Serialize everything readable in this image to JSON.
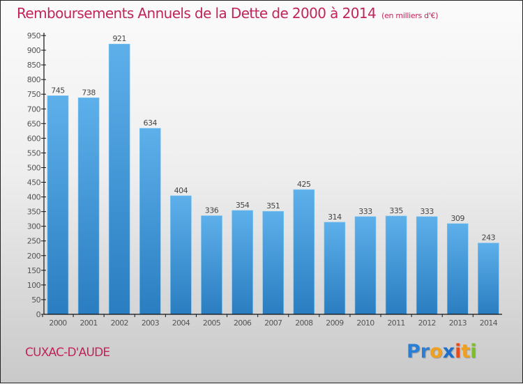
{
  "header": {
    "title": "Remboursements Annuels de la Dette de 2000 à 2014",
    "subtitle": "(en milliers d'€)"
  },
  "footer": {
    "commune": "CUXAC-D'AUDE",
    "logo": {
      "letters": [
        {
          "char": "P",
          "color": "#2a7fd4"
        },
        {
          "char": "r",
          "color": "#2a7fd4"
        },
        {
          "char": "o",
          "color": "#f0a020"
        },
        {
          "char": "x",
          "color": "#1e6fc8"
        },
        {
          "char": "i",
          "color": "#e84a1a"
        },
        {
          "char": "t",
          "color": "#f0a020"
        },
        {
          "char": "i",
          "color": "#7cbf2a"
        }
      ]
    }
  },
  "colors": {
    "accent": "#c0245a",
    "bar_top": "#5db0ea",
    "bar_bottom": "#2a7dc0"
  },
  "chart_data": {
    "type": "bar",
    "title": "Remboursements Annuels de la Dette de 2000 à 2014",
    "subtitle": "(en milliers d'€)",
    "xlabel": "",
    "ylabel": "",
    "categories": [
      "2000",
      "2001",
      "2002",
      "2003",
      "2004",
      "2005",
      "2006",
      "2007",
      "2008",
      "2009",
      "2010",
      "2011",
      "2012",
      "2013",
      "2014"
    ],
    "values": [
      745,
      738,
      921,
      634,
      404,
      336,
      354,
      351,
      425,
      314,
      333,
      335,
      333,
      309,
      243
    ],
    "ylim": [
      0,
      950
    ],
    "yticks": [
      0,
      50,
      100,
      150,
      200,
      250,
      300,
      350,
      400,
      450,
      500,
      550,
      600,
      650,
      700,
      750,
      800,
      850,
      900,
      950
    ],
    "grid": false,
    "legend": "none",
    "data_labels": true
  }
}
